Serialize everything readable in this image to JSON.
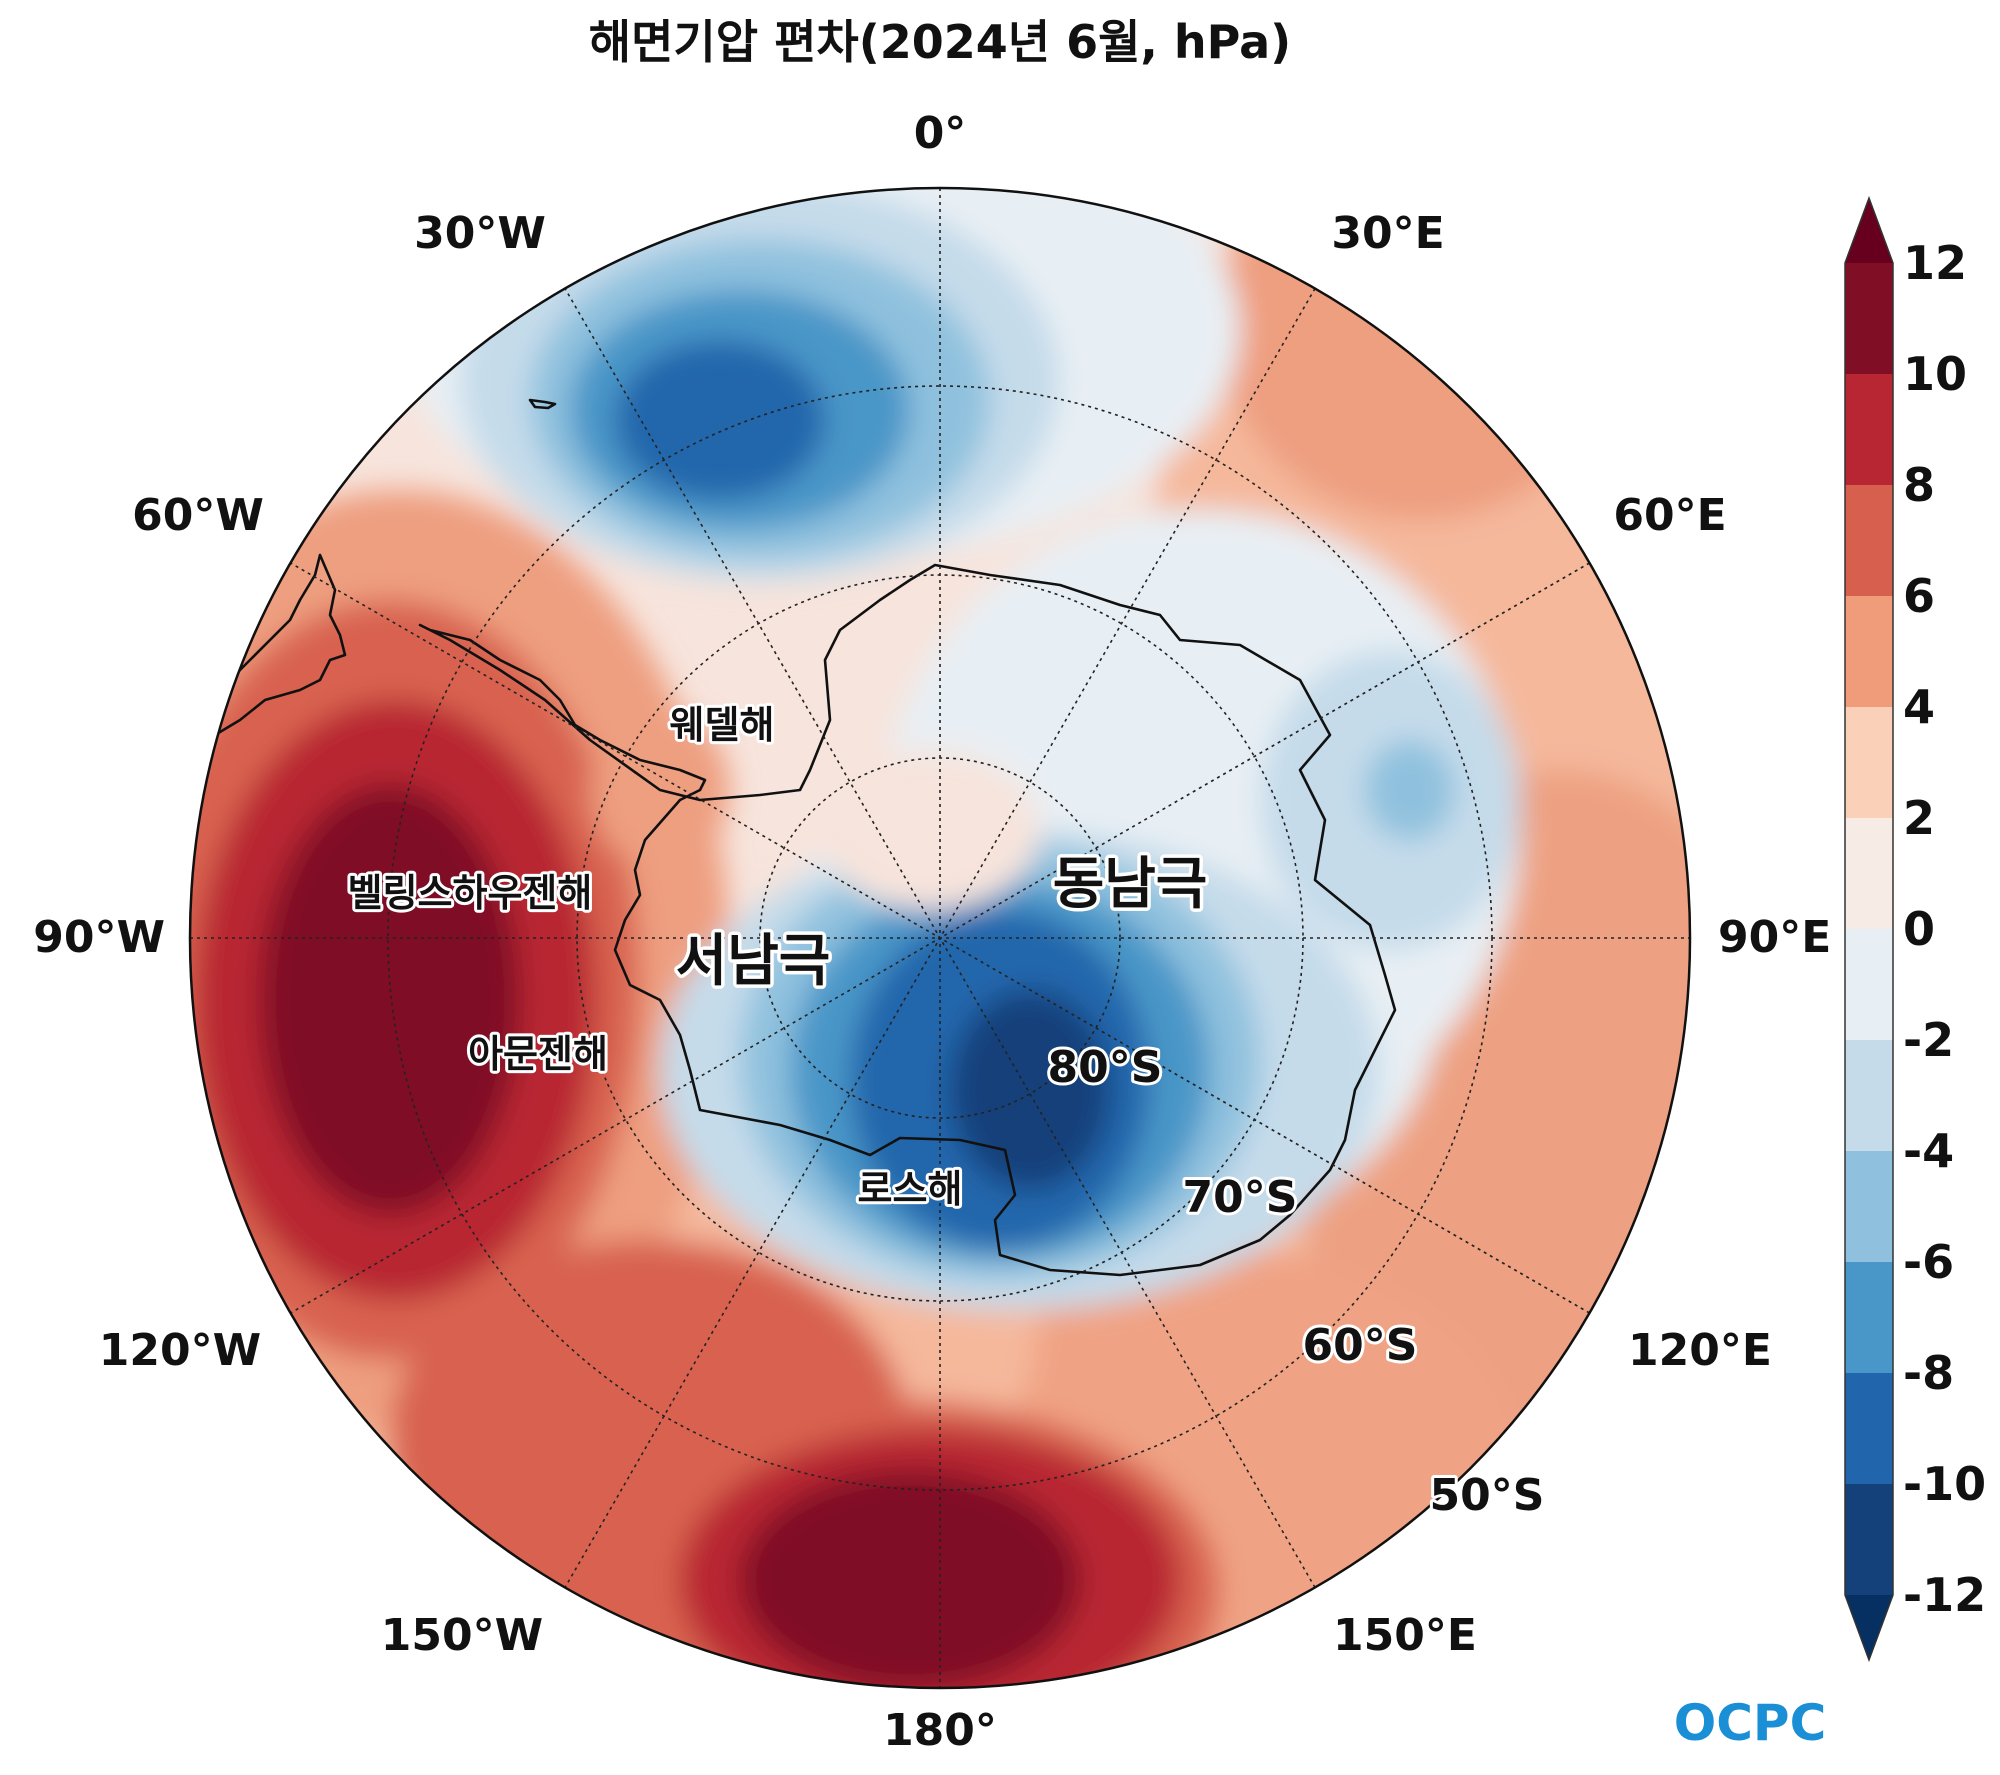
{
  "title": "해면기압 편차(2024년 6월, hPa)",
  "longitude_labels": [
    {
      "id": "lon-0",
      "text": "0°"
    },
    {
      "id": "lon-30e",
      "text": "30°E"
    },
    {
      "id": "lon-60e",
      "text": "60°E"
    },
    {
      "id": "lon-90e",
      "text": "90°E"
    },
    {
      "id": "lon-120e",
      "text": "120°E"
    },
    {
      "id": "lon-150e",
      "text": "150°E"
    },
    {
      "id": "lon-180",
      "text": "180°"
    },
    {
      "id": "lon-150w",
      "text": "150°W"
    },
    {
      "id": "lon-120w",
      "text": "120°W"
    },
    {
      "id": "lon-90w",
      "text": "90°W"
    },
    {
      "id": "lon-60w",
      "text": "60°W"
    },
    {
      "id": "lon-30w",
      "text": "30°W"
    }
  ],
  "latitude_labels": [
    {
      "id": "lat-80s",
      "text": "80°S"
    },
    {
      "id": "lat-70s",
      "text": "70°S"
    },
    {
      "id": "lat-60s",
      "text": "60°S"
    },
    {
      "id": "lat-50s",
      "text": "50°S"
    }
  ],
  "place_labels": {
    "weddell": "웨델해",
    "bellingshausen": "벨링스하우젠해",
    "amundsen": "아문젠해",
    "ross": "로스해",
    "west_antarctica": "서남극",
    "east_antarctica": "동남극"
  },
  "colorbar": {
    "ticks": [
      "12",
      "10",
      "8",
      "6",
      "4",
      "2",
      "0",
      "-2",
      "-4",
      "-6",
      "-8",
      "-10",
      "-12"
    ],
    "colors_top_to_bottom": [
      "#800f26",
      "#b82533",
      "#d6604d",
      "#f09c7b",
      "#fbd0b9",
      "#f7ebe5",
      "#e8eff4",
      "#c5dbea",
      "#8fc1de",
      "#4996c8",
      "#2166ac",
      "#14417a"
    ],
    "over_color": "#67001f",
    "under_color": "#053061"
  },
  "logo": {
    "text": "OCPC",
    "color": "#1a8fd6"
  }
}
